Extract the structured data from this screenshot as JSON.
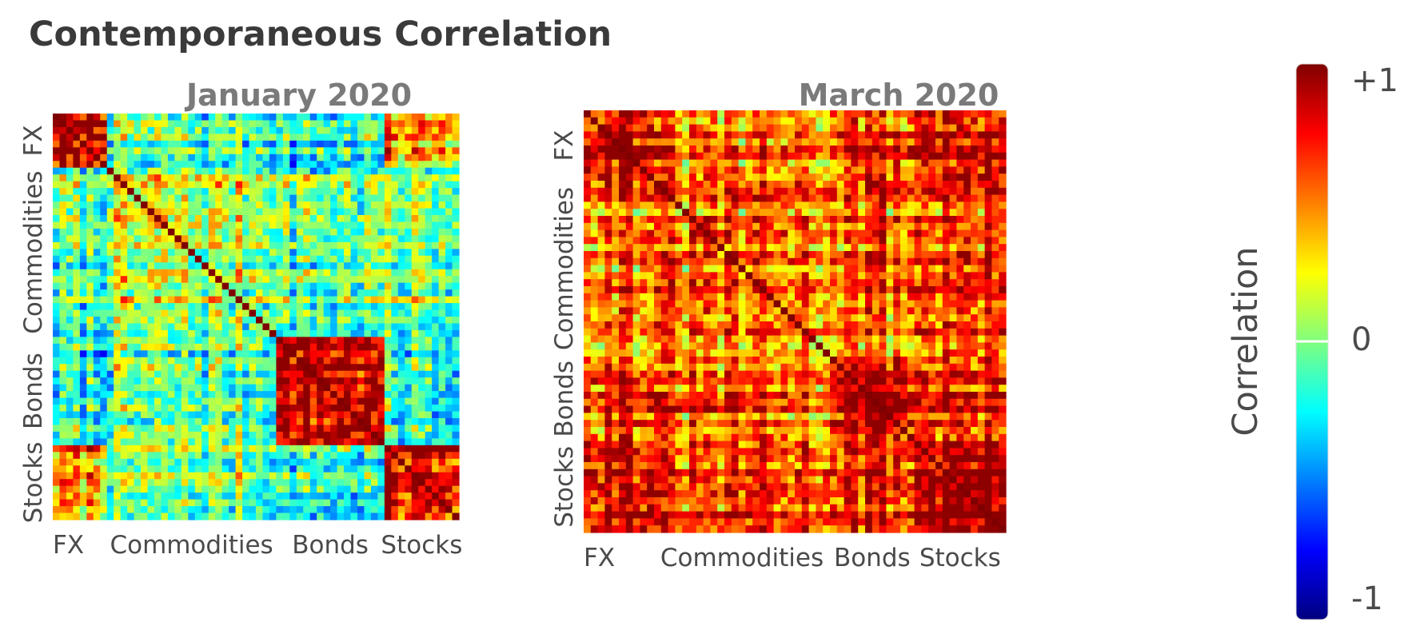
{
  "title": "Contemporaneous Correlation",
  "chart_data": [
    {
      "type": "heatmap",
      "title": "January 2020",
      "n_assets": 60,
      "groups": [
        {
          "label": "FX",
          "start": 0,
          "end": 8
        },
        {
          "label": "Commodities",
          "start": 8,
          "end": 33
        },
        {
          "label": "Bonds",
          "start": 33,
          "end": 49
        },
        {
          "label": "Stocks",
          "start": 49,
          "end": 60
        }
      ],
      "x_tick_labels": [
        "FX",
        "Commodities",
        "Bonds",
        "Stocks"
      ],
      "y_tick_labels": [
        "FX",
        "Commodities",
        "Bonds",
        "Stocks"
      ],
      "block_correlation": [
        [
          0.8,
          -0.1,
          -0.2,
          0.45
        ],
        [
          -0.1,
          0.1,
          -0.05,
          0.0
        ],
        [
          -0.2,
          -0.05,
          0.85,
          -0.15
        ],
        [
          0.45,
          0.0,
          -0.15,
          0.85
        ]
      ],
      "diagonal": 1,
      "clim": [
        -1,
        1
      ]
    },
    {
      "type": "heatmap",
      "title": "March 2020",
      "n_assets": 60,
      "groups": [
        {
          "label": "FX",
          "start": 0,
          "end": 10
        },
        {
          "label": "Commodities",
          "start": 10,
          "end": 35
        },
        {
          "label": "Bonds",
          "start": 35,
          "end": 47
        },
        {
          "label": "Stocks",
          "start": 47,
          "end": 60
        }
      ],
      "x_tick_labels": [
        "FX",
        "Commodities",
        "Bonds",
        "Stocks"
      ],
      "y_tick_labels": [
        "FX",
        "Commodities",
        "Bonds",
        "Stocks"
      ],
      "block_correlation": [
        [
          0.95,
          0.55,
          0.7,
          0.85
        ],
        [
          0.55,
          0.5,
          0.55,
          0.6
        ],
        [
          0.7,
          0.55,
          0.85,
          0.7
        ],
        [
          0.85,
          0.6,
          0.7,
          0.95
        ]
      ],
      "diagonal": 1,
      "clim": [
        -1,
        1
      ]
    }
  ],
  "colorbar": {
    "label": "Correlation",
    "ticks": [
      {
        "value": 1,
        "label": "+1"
      },
      {
        "value": 0,
        "label": "0"
      },
      {
        "value": -1,
        "label": "-1"
      }
    ],
    "colormap": [
      "#00007f",
      "#0000ff",
      "#007fff",
      "#00ffff",
      "#7fff7f",
      "#ffff00",
      "#ff7f00",
      "#ff0000",
      "#7f0000"
    ]
  }
}
